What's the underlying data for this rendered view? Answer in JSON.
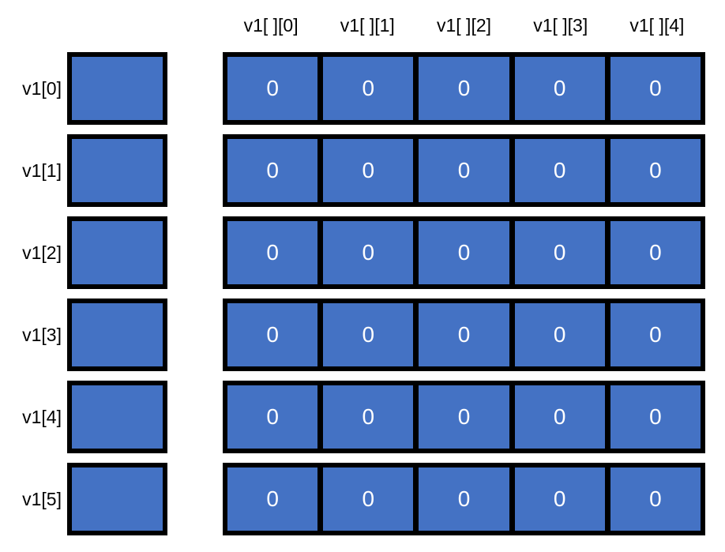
{
  "colors": {
    "cell_fill": "#4472C4",
    "border": "#000000",
    "value_text": "#FFFFFF",
    "label_text": "#000000",
    "page_background": "#FFFFFF"
  },
  "column_headers": [
    "v1[ ][0]",
    "v1[ ][1]",
    "v1[ ][2]",
    "v1[ ][3]",
    "v1[ ][4]"
  ],
  "rows": [
    {
      "label": "v1[0]",
      "cells": [
        "0",
        "0",
        "0",
        "0",
        "0"
      ]
    },
    {
      "label": "v1[1]",
      "cells": [
        "0",
        "0",
        "0",
        "0",
        "0"
      ]
    },
    {
      "label": "v1[2]",
      "cells": [
        "0",
        "0",
        "0",
        "0",
        "0"
      ]
    },
    {
      "label": "v1[3]",
      "cells": [
        "0",
        "0",
        "0",
        "0",
        "0"
      ]
    },
    {
      "label": "v1[4]",
      "cells": [
        "0",
        "0",
        "0",
        "0",
        "0"
      ]
    },
    {
      "label": "v1[5]",
      "cells": [
        "0",
        "0",
        "0",
        "0",
        "0"
      ]
    }
  ]
}
